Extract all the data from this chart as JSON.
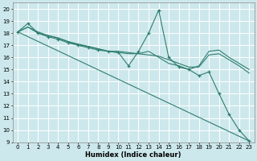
{
  "xlabel": "Humidex (Indice chaleur)",
  "bg_color": "#cde8ec",
  "grid_color": "#ffffff",
  "line_color": "#2e7d6e",
  "xlim": [
    -0.5,
    23.5
  ],
  "ylim": [
    9,
    20.5
  ],
  "xticks": [
    0,
    1,
    2,
    3,
    4,
    5,
    6,
    7,
    8,
    9,
    10,
    11,
    12,
    13,
    14,
    15,
    16,
    17,
    18,
    19,
    20,
    21,
    22,
    23
  ],
  "yticks": [
    9,
    10,
    11,
    12,
    13,
    14,
    15,
    16,
    17,
    18,
    19,
    20
  ],
  "lines": [
    {
      "x": [
        0,
        1,
        2,
        3,
        4,
        5,
        6,
        7,
        8,
        9,
        10,
        11,
        12,
        13,
        14,
        15,
        16,
        17,
        18,
        19,
        20,
        21,
        22,
        23
      ],
      "y": [
        18.1,
        18.8,
        18.0,
        17.7,
        17.5,
        17.2,
        17.0,
        16.8,
        16.6,
        16.5,
        16.4,
        15.3,
        16.5,
        18.0,
        19.9,
        16.0,
        15.2,
        15.0,
        14.5,
        14.8,
        13.0,
        11.3,
        10.0,
        9.1
      ],
      "marker": true
    },
    {
      "x": [
        0,
        1,
        2,
        3,
        4,
        5,
        6,
        7,
        8,
        9,
        10,
        11,
        12,
        13,
        14,
        15,
        16,
        17,
        18,
        19,
        20,
        21,
        22,
        23
      ],
      "y": [
        18.1,
        18.5,
        18.0,
        17.8,
        17.6,
        17.3,
        17.0,
        16.9,
        16.7,
        16.5,
        16.4,
        16.3,
        16.3,
        16.2,
        16.1,
        15.8,
        15.5,
        15.2,
        15.2,
        16.2,
        16.3,
        15.8,
        15.3,
        14.7
      ],
      "marker": false
    },
    {
      "x": [
        0,
        1,
        2,
        3,
        4,
        5,
        6,
        7,
        8,
        9,
        10,
        11,
        12,
        13,
        14,
        15,
        16,
        17,
        18,
        19,
        20,
        21,
        22,
        23
      ],
      "y": [
        18.1,
        18.5,
        18.1,
        17.8,
        17.6,
        17.3,
        17.1,
        16.9,
        16.7,
        16.5,
        16.5,
        16.4,
        16.3,
        16.5,
        16.0,
        15.5,
        15.3,
        15.0,
        15.3,
        16.5,
        16.6,
        16.0,
        15.5,
        15.0
      ],
      "marker": false
    },
    {
      "x": [
        0,
        23
      ],
      "y": [
        18.1,
        9.1
      ],
      "marker": false
    }
  ]
}
